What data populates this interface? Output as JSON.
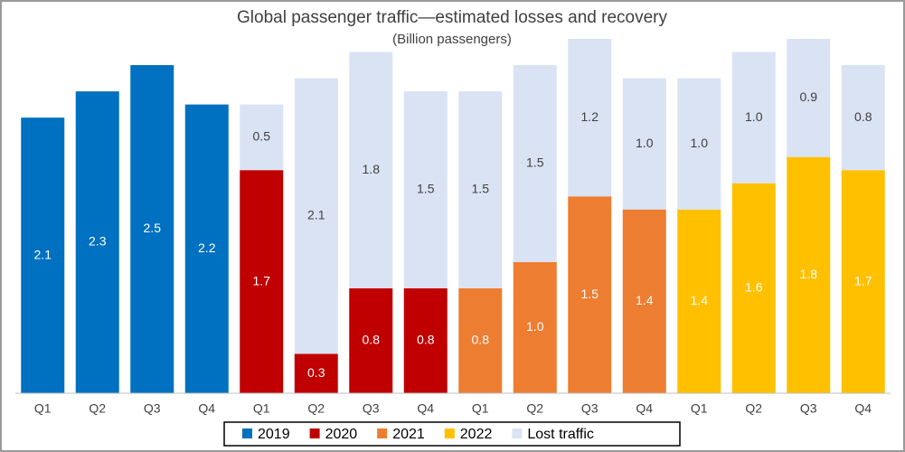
{
  "chart_data": {
    "type": "stacked-bar",
    "title": "Global passenger traffic—estimated losses and recovery",
    "subtitle": "(Billion passengers)",
    "categories": [
      "Q1",
      "Q2",
      "Q3",
      "Q4",
      "Q1",
      "Q2",
      "Q3",
      "Q4",
      "Q1",
      "Q2",
      "Q3",
      "Q4",
      "Q1",
      "Q2",
      "Q3",
      "Q4"
    ],
    "series": [
      {
        "name": "2019",
        "color": "#0070c0",
        "values": [
          2.1,
          2.3,
          2.5,
          2.2,
          null,
          null,
          null,
          null,
          null,
          null,
          null,
          null,
          null,
          null,
          null,
          null
        ],
        "value_labels": [
          "2.1",
          "2.3",
          "2.5",
          "2.2",
          null,
          null,
          null,
          null,
          null,
          null,
          null,
          null,
          null,
          null,
          null,
          null
        ]
      },
      {
        "name": "2020",
        "color": "#c00000",
        "values": [
          null,
          null,
          null,
          null,
          1.7,
          0.3,
          0.8,
          0.8,
          null,
          null,
          null,
          null,
          null,
          null,
          null,
          null
        ],
        "value_labels": [
          null,
          null,
          null,
          null,
          "1.7",
          "0.3",
          "0.8",
          "0.8",
          null,
          null,
          null,
          null,
          null,
          null,
          null,
          null
        ]
      },
      {
        "name": "2021",
        "color": "#ed7d31",
        "values": [
          null,
          null,
          null,
          null,
          null,
          null,
          null,
          null,
          0.8,
          1.0,
          1.5,
          1.4,
          null,
          null,
          null,
          null
        ],
        "value_labels": [
          null,
          null,
          null,
          null,
          null,
          null,
          null,
          null,
          "0.8",
          "1.0",
          "1.5",
          "1.4",
          null,
          null,
          null,
          null
        ]
      },
      {
        "name": "2022",
        "color": "#ffc000",
        "values": [
          null,
          null,
          null,
          null,
          null,
          null,
          null,
          null,
          null,
          null,
          null,
          null,
          1.4,
          1.6,
          1.8,
          1.7
        ],
        "value_labels": [
          null,
          null,
          null,
          null,
          null,
          null,
          null,
          null,
          null,
          null,
          null,
          null,
          "1.4",
          "1.6",
          "1.8",
          "1.7"
        ]
      },
      {
        "name": "Lost traffic",
        "color": "#dae3f3",
        "values": [
          null,
          null,
          null,
          null,
          0.5,
          2.1,
          1.8,
          1.5,
          1.5,
          1.5,
          1.2,
          1.0,
          1.0,
          1.0,
          0.9,
          0.8
        ],
        "value_labels": [
          null,
          null,
          null,
          null,
          "0.5",
          "2.1",
          "1.8",
          "1.5",
          "1.5",
          "1.5",
          "1.2",
          "1.0",
          "1.0",
          "1.0",
          "0.9",
          "0.8"
        ]
      }
    ]
  }
}
